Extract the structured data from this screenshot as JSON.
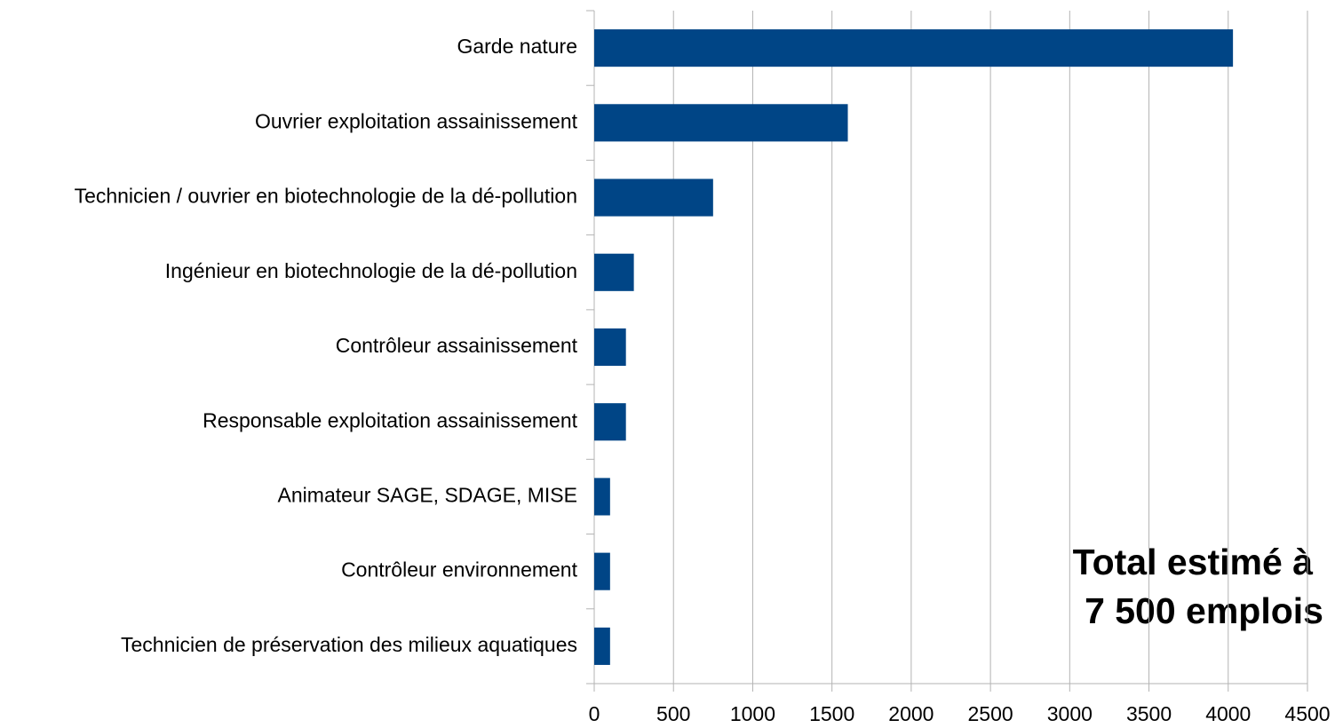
{
  "chart_data": {
    "type": "barh",
    "categories": [
      "Garde nature",
      "Ouvrier exploitation assainissement",
      "Technicien / ouvrier en biotechnologie de la dé-pollution",
      "Ingénieur en biotechnologie de la dé-pollution",
      "Contrôleur assainissement",
      "Responsable exploitation assainissement",
      "Animateur SAGE, SDAGE, MISE",
      "Contrôleur environnement",
      "Technicien de préservation des milieux aquatiques"
    ],
    "values": [
      4030,
      1600,
      750,
      250,
      200,
      200,
      100,
      100,
      100
    ],
    "color": "#004586",
    "xlim": [
      0,
      4500
    ],
    "xticks": [
      0,
      500,
      1000,
      1500,
      2000,
      2500,
      3000,
      3500,
      4000,
      4500
    ],
    "grid": true,
    "annotation": [
      "Total estimé à",
      "7 500 emplois"
    ]
  }
}
